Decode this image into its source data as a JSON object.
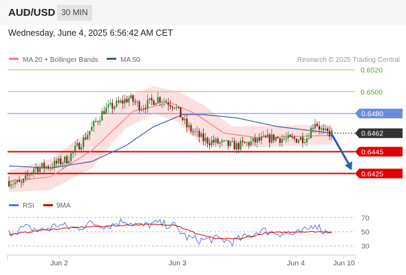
{
  "header": {
    "symbol": "AUD/USD",
    "timeframe": "30 MIN"
  },
  "timestamp": "Wednesday, June 4, 2025 6:56:42 AM CET",
  "legend": {
    "ma20": "MA 20 + Bollinger Bands",
    "ma50": "MA 50",
    "credit": "Research © 2025 Trading Central",
    "rsi": "RSI",
    "ma9": "9MA"
  },
  "colors": {
    "ma20": "#f08080",
    "ma50": "#3a5fa8",
    "bands": "#fde0e0",
    "up_candle": "#2e8b2e",
    "down_candle": "#8b1a1a",
    "support": "#e00000",
    "resistance": "#6b8ae0",
    "pivot_green": "#9acd66",
    "current": "#333333",
    "rsi_line": "#5577dd",
    "rsi_ma": "#cc0000",
    "arrow": "#2d5fa8"
  },
  "chart_data": [
    {
      "type": "candlestick",
      "ylim": [
        0.6407,
        0.6533
      ],
      "price_levels": [
        {
          "label": "0.6520",
          "value": 0.652,
          "kind": "target",
          "color": "#9acd66"
        },
        {
          "label": "0.6500",
          "value": 0.65,
          "kind": "target",
          "color": "#9acd66"
        },
        {
          "label": "0.6480",
          "value": 0.648,
          "kind": "pivot",
          "color": "#5b82e6"
        },
        {
          "label": "0.6462",
          "value": 0.6462,
          "kind": "last",
          "color": "#333333"
        },
        {
          "label": "0.6445",
          "value": 0.6445,
          "kind": "support",
          "color": "#e00000"
        },
        {
          "label": "0.6425",
          "value": 0.6425,
          "kind": "support",
          "color": "#e00000"
        }
      ],
      "x_ticks": [
        "Jun 2",
        "Jun 3",
        "Jun 4",
        "Jun 10"
      ],
      "close_anchors": [
        [
          0,
          0.6418
        ],
        [
          6,
          0.6415
        ],
        [
          12,
          0.643
        ],
        [
          20,
          0.6432
        ],
        [
          28,
          0.6438
        ],
        [
          36,
          0.6456
        ],
        [
          46,
          0.6483
        ],
        [
          54,
          0.649
        ],
        [
          58,
          0.6494
        ],
        [
          64,
          0.6486
        ],
        [
          72,
          0.6494
        ],
        [
          80,
          0.6488
        ],
        [
          86,
          0.6468
        ],
        [
          94,
          0.6456
        ],
        [
          104,
          0.6452
        ],
        [
          110,
          0.645
        ],
        [
          118,
          0.6454
        ],
        [
          128,
          0.6458
        ],
        [
          136,
          0.6456
        ],
        [
          144,
          0.6458
        ],
        [
          148,
          0.6473
        ],
        [
          152,
          0.6462
        ],
        [
          156,
          0.6462
        ]
      ],
      "ma20_anchors": [
        [
          0,
          0.6418
        ],
        [
          20,
          0.6422
        ],
        [
          40,
          0.6446
        ],
        [
          60,
          0.6482
        ],
        [
          78,
          0.649
        ],
        [
          90,
          0.648
        ],
        [
          104,
          0.6462
        ],
        [
          120,
          0.6458
        ],
        [
          156,
          0.646
        ]
      ],
      "band_upper": [
        [
          0,
          0.6428
        ],
        [
          20,
          0.6438
        ],
        [
          40,
          0.6466
        ],
        [
          56,
          0.6495
        ],
        [
          70,
          0.6505
        ],
        [
          82,
          0.65
        ],
        [
          94,
          0.6488
        ],
        [
          108,
          0.6468
        ],
        [
          156,
          0.647
        ]
      ],
      "band_lower": [
        [
          0,
          0.6408
        ],
        [
          20,
          0.641
        ],
        [
          40,
          0.643
        ],
        [
          56,
          0.6466
        ],
        [
          70,
          0.648
        ],
        [
          82,
          0.6472
        ],
        [
          94,
          0.645
        ],
        [
          108,
          0.6448
        ],
        [
          156,
          0.6452
        ]
      ],
      "ma50_anchors": [
        [
          0,
          0.6432
        ],
        [
          20,
          0.643
        ],
        [
          40,
          0.6436
        ],
        [
          56,
          0.645
        ],
        [
          70,
          0.6468
        ],
        [
          84,
          0.6479
        ],
        [
          94,
          0.6479
        ],
        [
          110,
          0.6476
        ],
        [
          130,
          0.6468
        ],
        [
          156,
          0.6462
        ]
      ],
      "projection": {
        "from": 0.646,
        "to": 0.6428
      }
    },
    {
      "type": "line",
      "name": "RSI",
      "ylim": [
        22,
        80
      ],
      "y_ticks": [
        70,
        50,
        30
      ],
      "rsi_anchors": [
        [
          0,
          48
        ],
        [
          8,
          56
        ],
        [
          16,
          52
        ],
        [
          24,
          60
        ],
        [
          32,
          54
        ],
        [
          40,
          62
        ],
        [
          48,
          58
        ],
        [
          56,
          66
        ],
        [
          64,
          58
        ],
        [
          72,
          62
        ],
        [
          80,
          58
        ],
        [
          86,
          42
        ],
        [
          92,
          38
        ],
        [
          100,
          40
        ],
        [
          108,
          36
        ],
        [
          116,
          44
        ],
        [
          122,
          52
        ],
        [
          130,
          48
        ],
        [
          138,
          46
        ],
        [
          144,
          52
        ],
        [
          148,
          62
        ],
        [
          152,
          50
        ],
        [
          156,
          52
        ]
      ],
      "ma9_anchors": [
        [
          0,
          46
        ],
        [
          16,
          52
        ],
        [
          32,
          56
        ],
        [
          48,
          58
        ],
        [
          64,
          60
        ],
        [
          80,
          60
        ],
        [
          90,
          48
        ],
        [
          100,
          40
        ],
        [
          112,
          40
        ],
        [
          124,
          48
        ],
        [
          140,
          50
        ],
        [
          156,
          50
        ]
      ]
    }
  ]
}
